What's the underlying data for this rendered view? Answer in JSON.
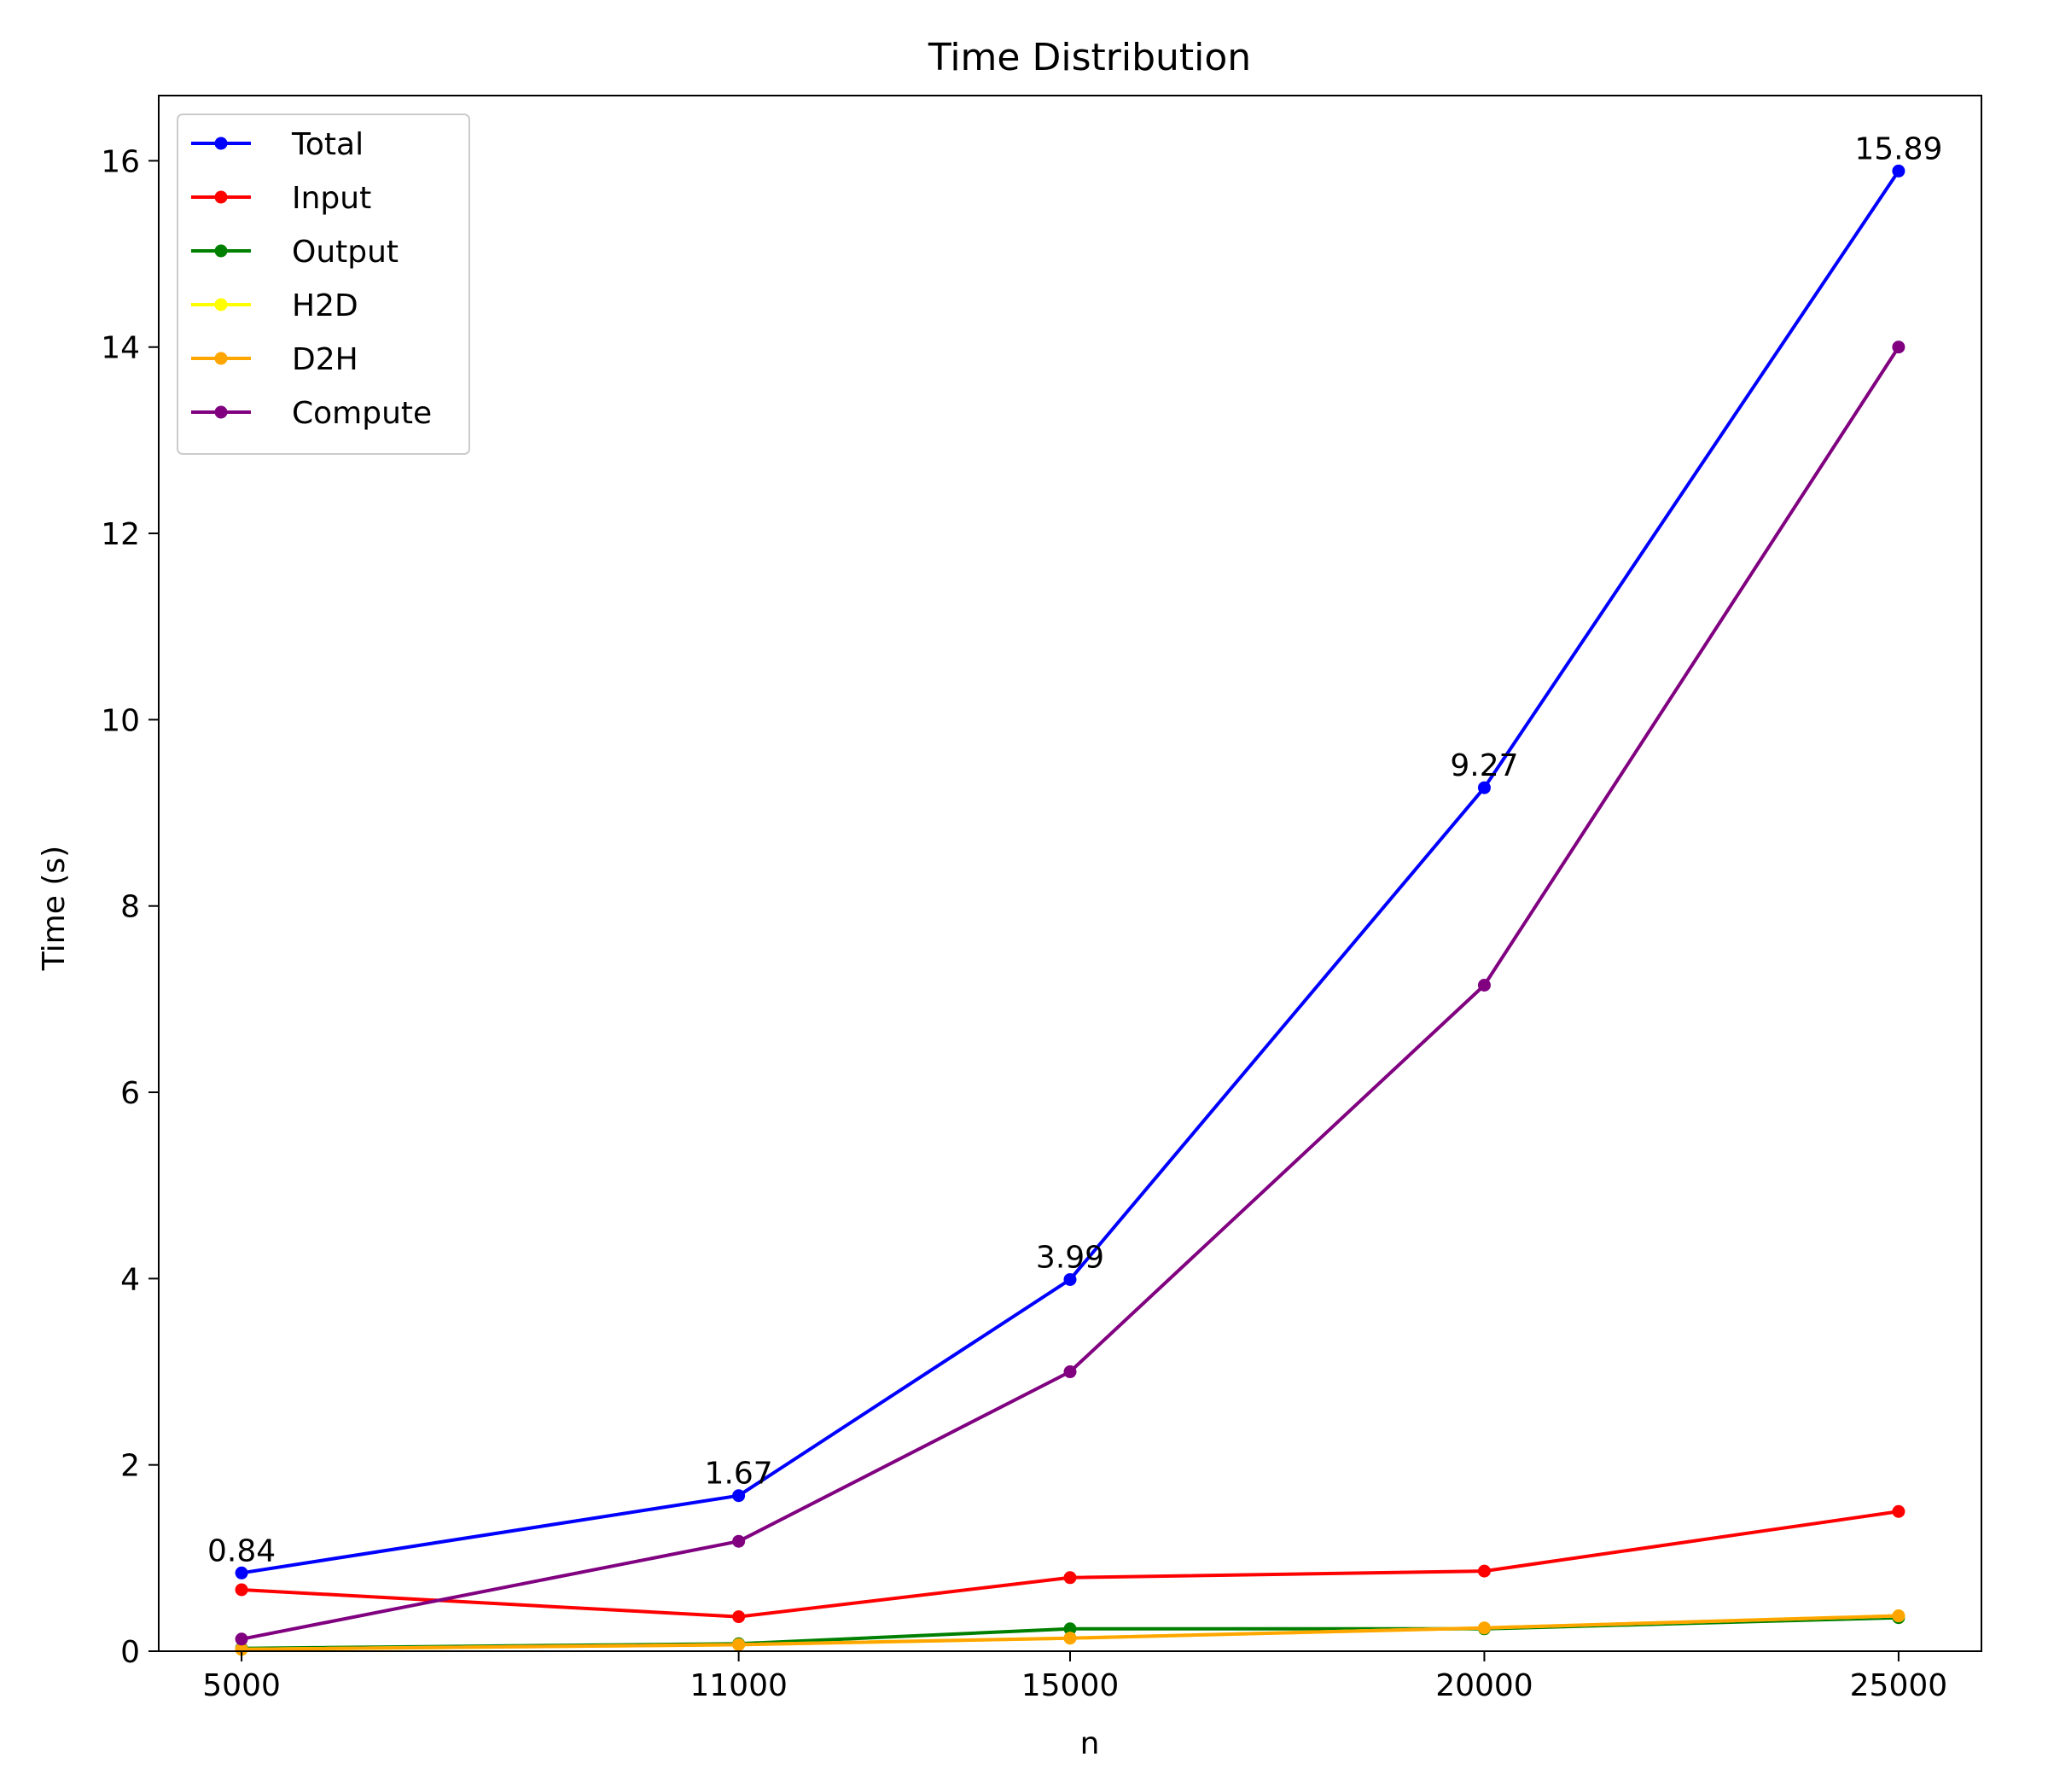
{
  "chart_data": {
    "type": "line",
    "title": "Time Distribution",
    "xlabel": "n",
    "ylabel": "Time (s)",
    "x": [
      5000,
      11000,
      15000,
      20000,
      25000
    ],
    "xlim": [
      4000,
      26000
    ],
    "ylim": [
      0,
      16.7
    ],
    "yticks": [
      0,
      2,
      4,
      6,
      8,
      10,
      12,
      14,
      16
    ],
    "grid": false,
    "legend_position": "top-left",
    "series": [
      {
        "name": "Total",
        "color": "#0000ff",
        "values": [
          0.84,
          1.67,
          3.99,
          9.27,
          15.89
        ],
        "data_labels": [
          "0.84",
          "1.67",
          "3.99",
          "9.27",
          "15.89"
        ]
      },
      {
        "name": "Input",
        "color": "#ff0000",
        "values": [
          0.66,
          0.37,
          0.79,
          0.86,
          1.5
        ]
      },
      {
        "name": "Output",
        "color": "#008000",
        "values": [
          0.03,
          0.08,
          0.24,
          0.24,
          0.36
        ]
      },
      {
        "name": "H2D",
        "color": "#ffff00",
        "values": [
          0.02,
          0.07,
          0.14,
          0.25,
          0.38
        ]
      },
      {
        "name": "D2H",
        "color": "#ffa500",
        "values": [
          0.02,
          0.07,
          0.14,
          0.25,
          0.38
        ]
      },
      {
        "name": "Compute",
        "color": "#800080",
        "values": [
          0.13,
          1.18,
          3.0,
          7.15,
          14.0
        ]
      }
    ]
  }
}
